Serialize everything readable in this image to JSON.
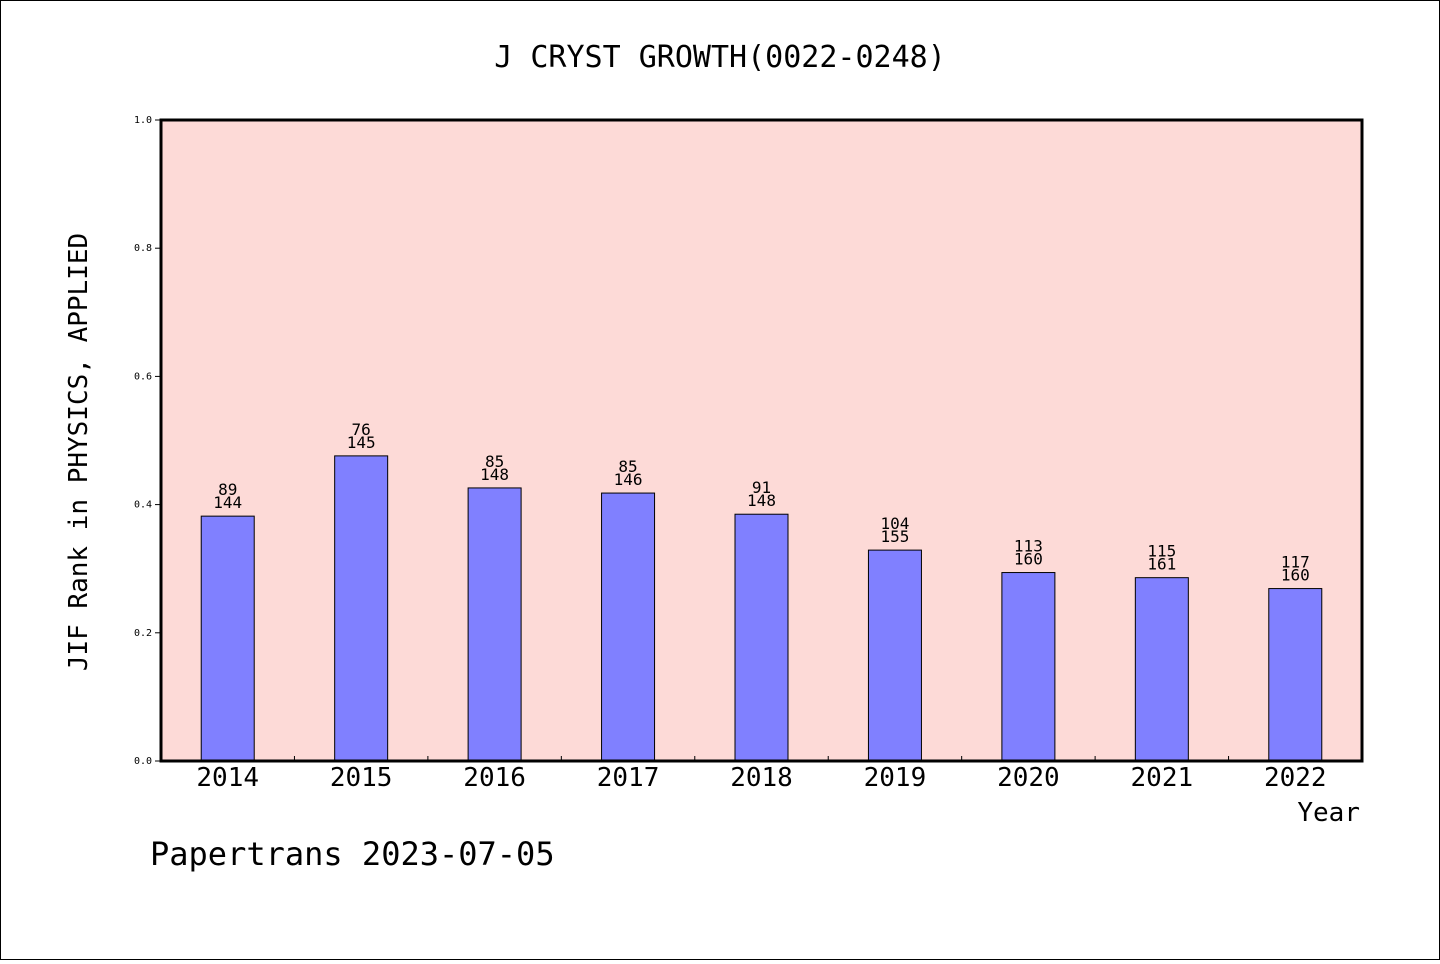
{
  "chart_data": {
    "type": "bar",
    "title": "J CRYST GROWTH(0022-0248)",
    "xlabel": "Year",
    "ylabel": "JIF Rank in PHYSICS, APPLIED",
    "ylim": [
      0,
      1.0
    ],
    "yticks": [
      "0.0",
      "0.2",
      "0.4",
      "0.6",
      "0.8",
      "1.0"
    ],
    "categories": [
      "2014",
      "2015",
      "2016",
      "2017",
      "2018",
      "2019",
      "2020",
      "2021",
      "2022"
    ],
    "values": [
      0.382,
      0.476,
      0.426,
      0.418,
      0.385,
      0.329,
      0.294,
      0.286,
      0.269
    ],
    "ranks": [
      "89",
      "76",
      "85",
      "85",
      "91",
      "104",
      "113",
      "115",
      "117"
    ],
    "totals": [
      "144",
      "145",
      "148",
      "146",
      "148",
      "155",
      "160",
      "161",
      "160"
    ],
    "grid": false,
    "colors": {
      "bar": "#8080ff",
      "plot_background": "#fddad7",
      "axis": "#000000"
    }
  },
  "footer": {
    "text": "Papertrans 2023-07-05"
  }
}
